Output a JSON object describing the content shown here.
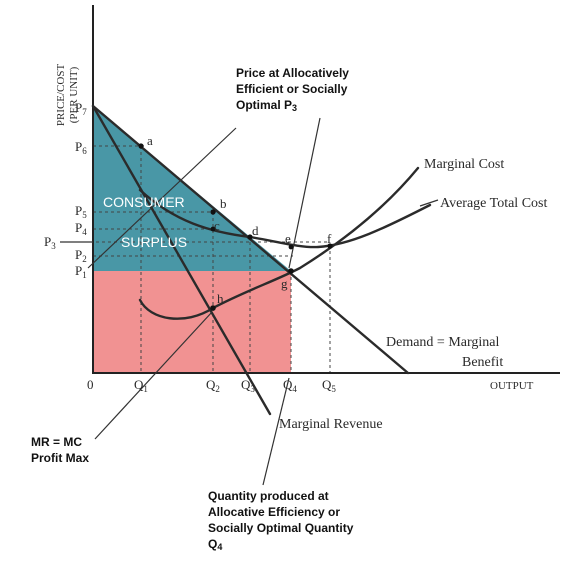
{
  "colors": {
    "consumer_surplus": "#3a8e9e",
    "producer_region": "#f08c8c",
    "curves": "#2b2b2b"
  },
  "axes": {
    "y_label_line1": "PRICE/COST",
    "y_label_line2": "(PER UNIT)",
    "x_label": "OUTPUT",
    "origin": "0"
  },
  "y_ticks": [
    {
      "base": "P",
      "sub": "7"
    },
    {
      "base": "P",
      "sub": "6"
    },
    {
      "base": "P",
      "sub": "5"
    },
    {
      "base": "P",
      "sub": "4"
    },
    {
      "base": "P",
      "sub": "3"
    },
    {
      "base": "P",
      "sub": "2"
    },
    {
      "base": "P",
      "sub": "1"
    }
  ],
  "x_ticks": [
    {
      "base": "Q",
      "sub": "1"
    },
    {
      "base": "Q",
      "sub": "2"
    },
    {
      "base": "Q",
      "sub": "3"
    },
    {
      "base": "Q",
      "sub": "4"
    },
    {
      "base": "Q",
      "sub": "5"
    }
  ],
  "points": {
    "a": "a",
    "b": "b",
    "c": "c",
    "d": "d",
    "e": "e",
    "f": "f",
    "g": "g",
    "h": "h"
  },
  "curve_labels": {
    "marginal_cost": "Marginal Cost",
    "average_total_cost": "Average Total Cost",
    "demand_line1": "Demand = Marginal",
    "demand_line2": "Benefit",
    "marginal_revenue": "Marginal Revenue"
  },
  "region_labels": {
    "consumer": "CONSUMER",
    "surplus": "SURPLUS"
  },
  "annotations": {
    "price_line1": "Price at Allocatively",
    "price_line2": "Efficient or Socially",
    "price_line3": "Optimal  P",
    "price_line3_sub": "3",
    "mrmc_line1": "MR = MC",
    "mrmc_line2": "Profit Max",
    "qty_line1": "Quantity produced at",
    "qty_line2": "Allocative Efficiency or",
    "qty_line3": "Socially Optimal Quantity",
    "qty_line4": "Q",
    "qty_line4_sub": "4"
  }
}
